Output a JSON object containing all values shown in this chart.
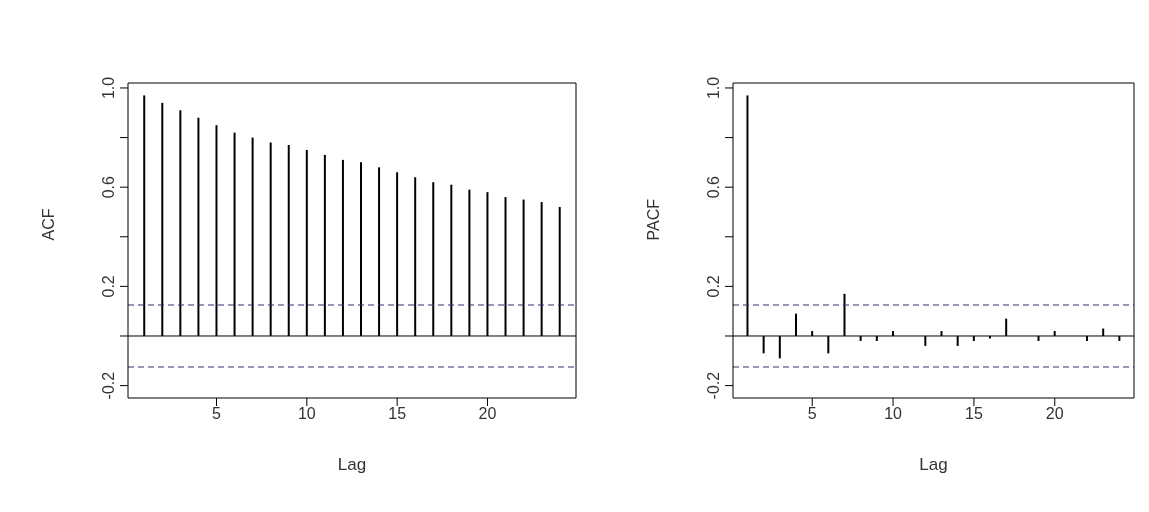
{
  "chart_data": [
    {
      "type": "bar",
      "xlabel": "Lag",
      "ylabel": "ACF",
      "color": "#000000",
      "x": [
        1,
        2,
        3,
        4,
        5,
        6,
        7,
        8,
        9,
        10,
        11,
        12,
        13,
        14,
        15,
        16,
        17,
        18,
        19,
        20,
        21,
        22,
        23,
        24
      ],
      "values": [
        0.97,
        0.94,
        0.91,
        0.88,
        0.85,
        0.82,
        0.8,
        0.78,
        0.77,
        0.75,
        0.73,
        0.71,
        0.7,
        0.68,
        0.66,
        0.64,
        0.62,
        0.61,
        0.59,
        0.58,
        0.56,
        0.55,
        0.54,
        0.52
      ],
      "xlim": [
        0.1,
        24.9
      ],
      "xticks": [
        5,
        10,
        15,
        20
      ],
      "ylim": [
        -0.25,
        1.02
      ],
      "yticks": [
        {
          "value": -0.2,
          "label": "-0.2"
        },
        {
          "value": 0,
          "label": null
        },
        {
          "value": 0.2,
          "label": "0.2"
        },
        {
          "value": 0.4,
          "label": null
        },
        {
          "value": 0.6,
          "label": "0.6"
        },
        {
          "value": 0.8,
          "label": null
        },
        {
          "value": 1,
          "label": "1.0"
        }
      ],
      "ref_lines": [
        {
          "axis": "y",
          "value": 0,
          "color": "#000000",
          "line_style": "solid"
        },
        {
          "axis": "y",
          "value": 0.125,
          "color": "#2f2f6f",
          "line_style": "dashed"
        },
        {
          "axis": "y",
          "value": -0.125,
          "color": "#2f2f6f",
          "line_style": "dashed"
        }
      ]
    },
    {
      "type": "bar",
      "xlabel": "Lag",
      "ylabel": "PACF",
      "color": "#000000",
      "x": [
        1,
        2,
        3,
        4,
        5,
        6,
        7,
        8,
        9,
        10,
        11,
        12,
        13,
        14,
        15,
        16,
        17,
        18,
        19,
        20,
        21,
        22,
        23,
        24
      ],
      "values": [
        0.97,
        -0.07,
        -0.09,
        0.09,
        0.02,
        -0.07,
        0.17,
        -0.02,
        -0.02,
        0.02,
        0,
        -0.04,
        0.02,
        -0.04,
        -0.02,
        -0.01,
        0.07,
        0,
        -0.02,
        0.02,
        0,
        -0.02,
        0.03,
        -0.02
      ],
      "xlim": [
        0.1,
        24.9
      ],
      "xticks": [
        5,
        10,
        15,
        20
      ],
      "ylim": [
        -0.25,
        1.02
      ],
      "yticks": [
        {
          "value": -0.2,
          "label": "-0.2"
        },
        {
          "value": 0,
          "label": null
        },
        {
          "value": 0.2,
          "label": "0.2"
        },
        {
          "value": 0.4,
          "label": null
        },
        {
          "value": 0.6,
          "label": "0.6"
        },
        {
          "value": 0.8,
          "label": null
        },
        {
          "value": 1,
          "label": "1.0"
        }
      ],
      "ref_lines": [
        {
          "axis": "y",
          "value": 0,
          "color": "#000000",
          "line_style": "solid"
        },
        {
          "axis": "y",
          "value": 0.125,
          "color": "#2f2f6f",
          "line_style": "dashed"
        },
        {
          "axis": "y",
          "value": -0.125,
          "color": "#2f2f6f",
          "line_style": "dashed"
        }
      ]
    }
  ]
}
